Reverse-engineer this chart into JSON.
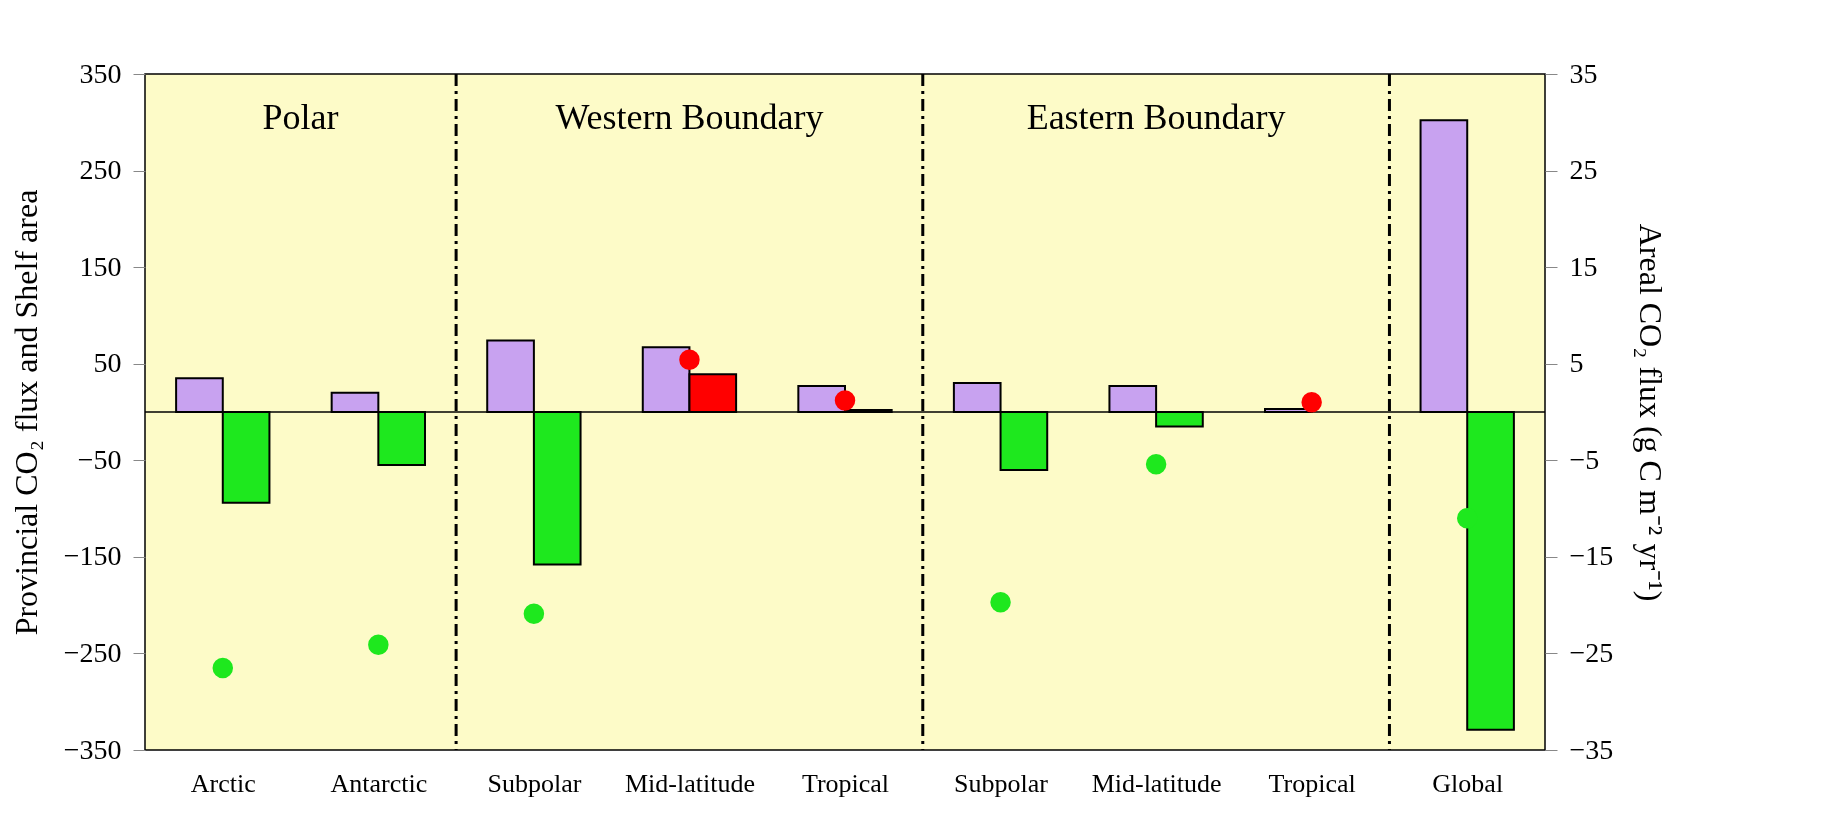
{
  "chart_data": {
    "type": "bar",
    "ylabel": "Provincial CO₂ flux and Shelf area",
    "y2label": "Areal CO₂ flux (g C m⁻² yr⁻¹)",
    "categories": [
      "Arctic",
      "Antarctic",
      "Subpolar",
      "Mid-latitude",
      "Tropical",
      "Subpolar",
      "Mid-latitude",
      "Tropical",
      "Global"
    ],
    "series": [
      {
        "color": "#c8a2f0",
        "values": [
          35,
          20,
          74,
          67,
          27,
          30,
          27,
          3,
          302
        ]
      },
      {
        "colors": [
          "#1ee81e",
          "#1ee81e",
          "#1ee81e",
          "#ff0000",
          "#ff0000",
          "#1ee81e",
          "#1ee81e",
          "#1ee81e",
          "#1ee81e"
        ],
        "values": [
          -94,
          -55,
          -158,
          39,
          2,
          -60,
          -15,
          null,
          -329
        ]
      },
      {
        "type": "scatter",
        "axis": "y2",
        "colors": [
          "#1ee81e",
          "#1ee81e",
          "#1ee81e",
          "#ff0000",
          "#ff0000",
          "#1ee81e",
          "#1ee81e",
          "#ff0000",
          "#1ee81e"
        ],
        "values": [
          -26.5,
          -24.1,
          -20.9,
          5.4,
          1.2,
          -19.7,
          -5.4,
          1.0,
          -11.0
        ]
      }
    ],
    "ylim": [
      -350,
      350
    ],
    "yticks": [
      -350,
      -250,
      -150,
      -50,
      50,
      150,
      250,
      350
    ],
    "y2lim": [
      -35,
      35
    ],
    "y2ticks": [
      -35,
      -25,
      -15,
      -5,
      5,
      15,
      25,
      35
    ],
    "ref_lines": [
      {
        "axis": "y",
        "value": 0,
        "color": "#000000",
        "line_style": "solid"
      }
    ],
    "annotations": [
      "Polar",
      "Western Boundary",
      "Eastern Boundary"
    ],
    "grid": false
  }
}
